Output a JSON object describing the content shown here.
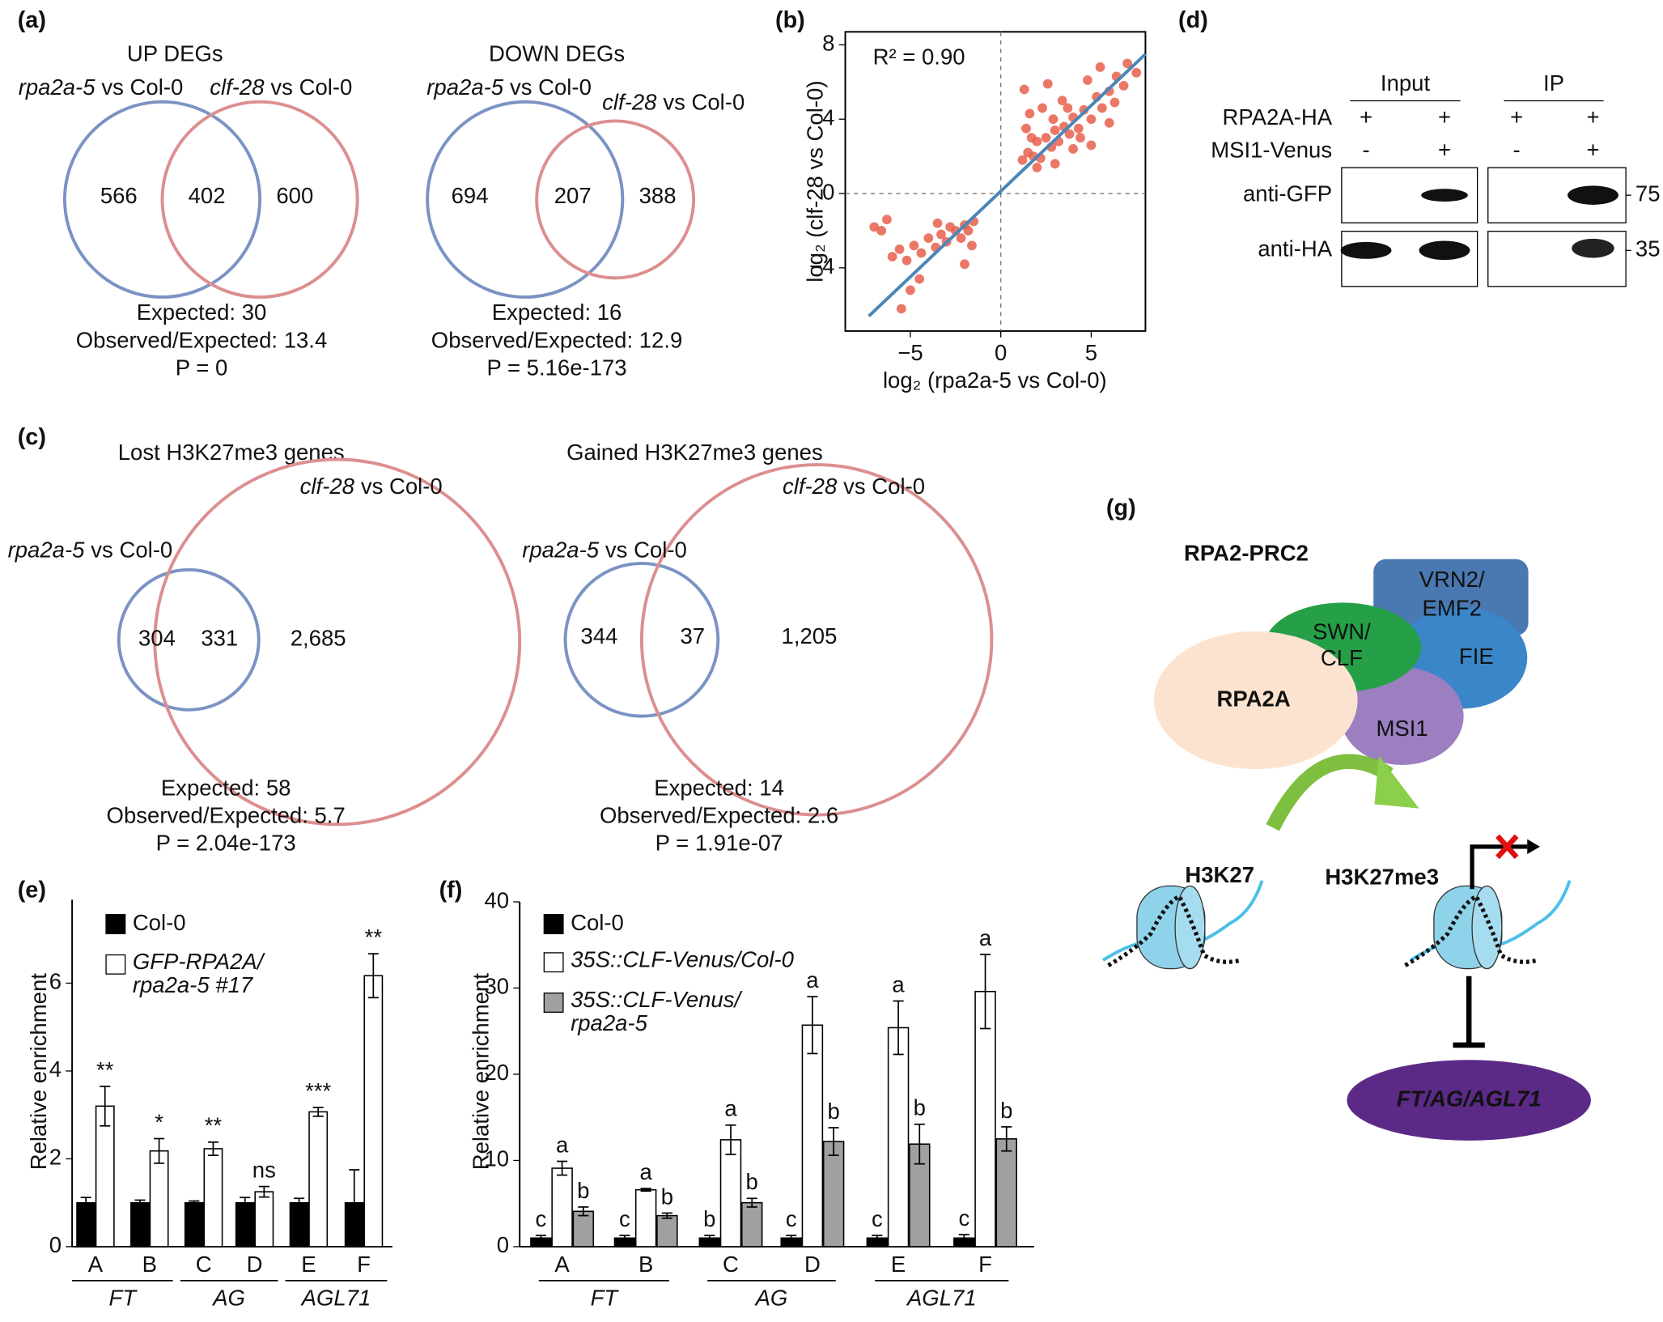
{
  "panel_labels": [
    "(a)",
    "(b)",
    "(c)",
    "(d)",
    "(e)",
    "(f)",
    "(g)"
  ],
  "venns": [
    {
      "title": "UP DEGs",
      "left": {
        "gene": "rpa2a-5",
        "comparison": "vs Col-0"
      },
      "right": {
        "gene": "clf-28",
        "comparison": "vs Col-0"
      },
      "counts": [
        566,
        402,
        600
      ],
      "expected": "Expected: 30",
      "ratio": "Observed/Expected: 13.4",
      "p": "P = 0"
    },
    {
      "title": "DOWN DEGs",
      "left": {
        "gene": "rpa2a-5",
        "comparison": "vs Col-0"
      },
      "right": {
        "gene": "clf-28",
        "comparison": "vs Col-0"
      },
      "counts": [
        694,
        207,
        388
      ],
      "expected": "Expected: 16",
      "ratio": "Observed/Expected: 12.9",
      "p": "P = 5.16e-173"
    },
    {
      "title": "Lost H3K27me3 genes",
      "left": {
        "gene": "rpa2a-5",
        "comparison": "vs Col-0"
      },
      "right": {
        "gene": "clf-28",
        "comparison": "vs Col-0"
      },
      "counts": [
        304,
        331,
        "2,685"
      ],
      "expected": "Expected: 58",
      "ratio": "Observed/Expected: 5.7",
      "p": "P = 2.04e-173"
    },
    {
      "title": "Gained H3K27me3 genes",
      "left": {
        "gene": "rpa2a-5",
        "comparison": "vs Col-0"
      },
      "right": {
        "gene": "clf-28",
        "comparison": "vs Col-0"
      },
      "counts": [
        344,
        37,
        "1,205"
      ],
      "expected": "Expected: 14",
      "ratio": "Observed/Expected: 2.6",
      "p": "P = 1.91e-07"
    }
  ],
  "blot": {
    "columns": [
      "Input",
      "IP"
    ],
    "rows": [
      {
        "label": "RPA2A-HA",
        "marks": [
          "+",
          "+",
          "+",
          "+"
        ]
      },
      {
        "label": "MSI1-Venus",
        "marks": [
          "-",
          "+",
          "-",
          "+"
        ]
      }
    ],
    "antibodies": [
      "anti-GFP",
      "anti-HA"
    ],
    "markers": [
      75,
      35
    ]
  },
  "model": {
    "title": "RPA2-PRC2",
    "subunits": [
      "VRN2/EMF2",
      "SWN/CLF",
      "FIE",
      "RPA2A",
      "MSI1"
    ],
    "substrate": "H3K27",
    "product": "H3K27me3",
    "targets": "FT/AG/AGL71"
  },
  "chart_data": [
    {
      "type": "scatter",
      "title": "R² = 0.90",
      "x_label": "log₂ (rpa2a-5 vs Col-0)",
      "y_label": "log₂ (clf-28 vs Col-0)",
      "color": "#e8604c",
      "x": [
        1.2,
        1.5,
        1.8,
        2.0,
        2.2,
        2.5,
        2.8,
        3.0,
        3.2,
        3.5,
        3.8,
        4.0,
        4.3,
        4.6,
        5.0,
        5.3,
        5.6,
        6.0,
        6.4,
        6.8,
        7.0,
        1.4,
        1.6,
        2.3,
        1.3,
        2.6,
        3.4,
        4.8,
        5.5,
        2.0,
        3.0,
        4.0,
        5.0,
        6.0,
        1.7,
        2.9,
        3.7,
        4.4,
        6.3,
        7.5,
        -1.5,
        -1.8,
        -2.0,
        -2.2,
        -2.5,
        -2.8,
        -3.0,
        -3.3,
        -3.6,
        -4.0,
        -4.4,
        -4.8,
        -5.2,
        -5.6,
        -6.0,
        -6.6,
        -7.0,
        -4.5,
        -5.0,
        -5.5,
        -2.0,
        -3.5,
        -1.6,
        -6.3
      ],
      "values": [
        1.8,
        2.2,
        2.0,
        2.8,
        1.9,
        3.0,
        2.5,
        3.4,
        2.8,
        3.6,
        3.2,
        4.1,
        3.5,
        4.5,
        4.0,
        5.2,
        4.6,
        5.5,
        6.3,
        5.8,
        7.0,
        3.5,
        4.3,
        4.6,
        5.6,
        5.9,
        5.0,
        6.1,
        6.8,
        1.4,
        1.6,
        2.4,
        2.6,
        3.8,
        3.0,
        4.0,
        4.6,
        3.0,
        4.9,
        6.5,
        -1.5,
        -2.0,
        -1.7,
        -2.4,
        -2.0,
        -1.8,
        -2.6,
        -2.2,
        -2.9,
        -2.4,
        -3.2,
        -2.8,
        -3.6,
        -3.0,
        -3.4,
        -2.0,
        -1.8,
        -4.6,
        -5.2,
        -6.2,
        -3.8,
        -1.6,
        -2.8,
        -1.4
      ],
      "fit": {
        "x": [
          -7.3,
          8
        ],
        "values": [
          -6.6,
          7.5
        ],
        "color": "#4a86b8"
      },
      "hline": 0,
      "vline": 0,
      "xlim": [
        -8.6,
        8
      ],
      "ylim": [
        -7.4,
        8.7
      ],
      "xticks": [
        {
          "value": -5,
          "label": "−5"
        },
        0,
        5
      ],
      "yticks": [
        {
          "value": -4,
          "label": "−4"
        },
        0,
        4,
        8
      ]
    },
    {
      "type": "bar",
      "y_label": "Relative enrichment",
      "categories": [
        "A",
        "B",
        "C",
        "D",
        "E",
        "F"
      ],
      "category_groups": [
        "FT",
        "FT",
        "AG",
        "AG",
        "AGL71",
        "AGL71"
      ],
      "ylim": [
        0,
        7.9
      ],
      "yticks": [
        0,
        2,
        4,
        6
      ],
      "series": [
        {
          "name": "Col-0",
          "color": "#000000",
          "values": [
            1,
            1,
            1,
            1,
            1,
            1
          ],
          "errors": [
            0.12,
            0.06,
            0.04,
            0.12,
            0.1,
            0.75
          ]
        },
        {
          "name": "GFP-RPA2A/rpa2a-5 #17",
          "color": "#ffffff",
          "values": [
            3.2,
            2.18,
            2.23,
            1.25,
            3.07,
            6.17
          ],
          "errors": [
            0.45,
            0.28,
            0.15,
            0.12,
            0.1,
            0.5
          ],
          "annotations": [
            "**",
            "*",
            "**",
            "ns",
            "***",
            "**"
          ]
        }
      ]
    },
    {
      "type": "bar",
      "y_label": "Relative enrichment",
      "categories": [
        "A",
        "B",
        "C",
        "D",
        "E",
        "F"
      ],
      "category_groups": [
        "FT",
        "FT",
        "AG",
        "AG",
        "AGL71",
        "AGL71"
      ],
      "ylim": [
        0,
        40
      ],
      "yticks": [
        0,
        10,
        20,
        30,
        40
      ],
      "series": [
        {
          "name": "Col-0",
          "color": "#000000",
          "values": [
            1,
            1,
            1,
            1,
            1,
            1
          ],
          "errors": [
            0.3,
            0.3,
            0.3,
            0.3,
            0.3,
            0.4
          ],
          "annotations": [
            "c",
            "c",
            "b",
            "c",
            "c",
            "c"
          ]
        },
        {
          "name": "35S::CLF-Venus/Col-0",
          "color": "#ffffff",
          "values": [
            9.1,
            6.6,
            12.4,
            25.7,
            25.4,
            29.6
          ],
          "errors": [
            0.8,
            0.15,
            1.7,
            3.3,
            3.1,
            4.3
          ],
          "annotations": [
            "a",
            "a",
            "a",
            "a",
            "a",
            "a"
          ]
        },
        {
          "name": "35S::CLF-Venus/rpa2a-5",
          "color": "#a0a0a0",
          "values": [
            4.1,
            3.6,
            5.1,
            12.2,
            11.9,
            12.5
          ],
          "errors": [
            0.5,
            0.3,
            0.5,
            1.6,
            2.3,
            1.4
          ],
          "annotations": [
            "b",
            "b",
            "b",
            "b",
            "b",
            "b"
          ]
        }
      ]
    }
  ]
}
